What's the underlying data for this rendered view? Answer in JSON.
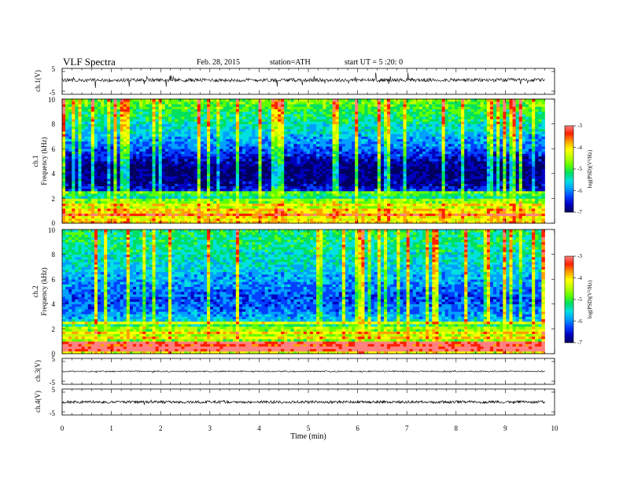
{
  "header": {
    "title": "VLF Spectra",
    "date": "Feb. 28, 2015",
    "station": "station=ATH",
    "start_time": "start UT =  5 :20: 0"
  },
  "colors": {
    "spectrogram_scale": [
      "#000060",
      "#0000c0",
      "#0040ff",
      "#00a0ff",
      "#00e0e0",
      "#00e060",
      "#60ff00",
      "#c0ff00",
      "#ffff00",
      "#ffa000",
      "#ff2000",
      "#ff8080",
      "#ffffff"
    ],
    "trace": "#000000"
  },
  "chart_data": [
    {
      "type": "line",
      "id": "ch1",
      "ylabel": "ch.1(V)",
      "ylim": [
        -5,
        5
      ],
      "yticks": [
        "5",
        "-5"
      ],
      "xlim": [
        0,
        10
      ],
      "trace": {
        "baseline": 0.5,
        "noise_amplitude": 0.7,
        "spike_amplitude": 2.5,
        "end_min": 9.8
      }
    },
    {
      "type": "heatmap",
      "id": "ch1-spectrogram",
      "ylabel": "Frequency (kHz)",
      "channel_label": "ch.1",
      "ylim": [
        0,
        10
      ],
      "yticks": [
        "0",
        "2",
        "4",
        "6",
        "8",
        "10"
      ],
      "xlim": [
        0,
        10
      ],
      "data_end_min": 9.8,
      "colorbar": {
        "label": "log(PSD)(V²/Hz)",
        "range": [
          -7,
          -3
        ],
        "ticks": [
          "-3",
          "-4",
          "-5",
          "-6",
          "-7"
        ]
      },
      "profile": [
        {
          "f": 0.0,
          "v": -3.8
        },
        {
          "f": 0.5,
          "v": -3.6
        },
        {
          "f": 1.0,
          "v": -4.6
        },
        {
          "f": 1.8,
          "v": -5.3
        },
        {
          "f": 2.4,
          "v": -6.0
        },
        {
          "f": 3.2,
          "v": -6.6
        },
        {
          "f": 4.5,
          "v": -6.8
        },
        {
          "f": 6.0,
          "v": -6.0
        },
        {
          "f": 7.5,
          "v": -5.4
        },
        {
          "f": 9.0,
          "v": -4.9
        },
        {
          "f": 10.0,
          "v": -4.5
        }
      ]
    },
    {
      "type": "heatmap",
      "id": "ch2-spectrogram",
      "ylabel": "Frequency (kHz)",
      "channel_label": "ch.2",
      "ylim": [
        0,
        10
      ],
      "yticks": [
        "0",
        "2",
        "4",
        "6",
        "8",
        "10"
      ],
      "xlim": [
        0,
        10
      ],
      "data_end_min": 9.8,
      "colorbar": {
        "label": "log(PSD)(V²/Hz)",
        "range": [
          -7,
          -3
        ],
        "ticks": [
          "-3",
          "-4",
          "-5",
          "-6",
          "-7"
        ]
      },
      "profile": [
        {
          "f": 0.0,
          "v": -4.2
        },
        {
          "f": 0.5,
          "v": -4.0
        },
        {
          "f": 1.0,
          "v": -4.3
        },
        {
          "f": 1.8,
          "v": -4.9
        },
        {
          "f": 2.6,
          "v": -5.4
        },
        {
          "f": 3.5,
          "v": -5.9
        },
        {
          "f": 4.5,
          "v": -6.1
        },
        {
          "f": 6.0,
          "v": -5.7
        },
        {
          "f": 7.5,
          "v": -5.3
        },
        {
          "f": 9.0,
          "v": -5.1
        },
        {
          "f": 10.0,
          "v": -5.0
        }
      ]
    },
    {
      "type": "line",
      "id": "ch3",
      "ylabel": "ch.3(V)",
      "ylim": [
        -5,
        5
      ],
      "yticks": [
        "5",
        "-5"
      ],
      "xlim": [
        0,
        10
      ],
      "trace": {
        "baseline": 0.0,
        "noise_amplitude": 0.25,
        "spike_amplitude": 0.4,
        "end_min": 9.8
      }
    },
    {
      "type": "line",
      "id": "ch4",
      "ylabel": "ch.4(V)",
      "ylim": [
        -5,
        5
      ],
      "yticks": [
        "5",
        "-5"
      ],
      "xlim": [
        0,
        10
      ],
      "trace": {
        "baseline": 0.0,
        "noise_amplitude": 0.5,
        "spike_amplitude": 0.5,
        "end_min": 9.8
      }
    }
  ],
  "xaxis": {
    "label": "Time (min)",
    "ticks": [
      "0",
      "1",
      "2",
      "3",
      "4",
      "5",
      "6",
      "7",
      "8",
      "9",
      "10"
    ]
  }
}
